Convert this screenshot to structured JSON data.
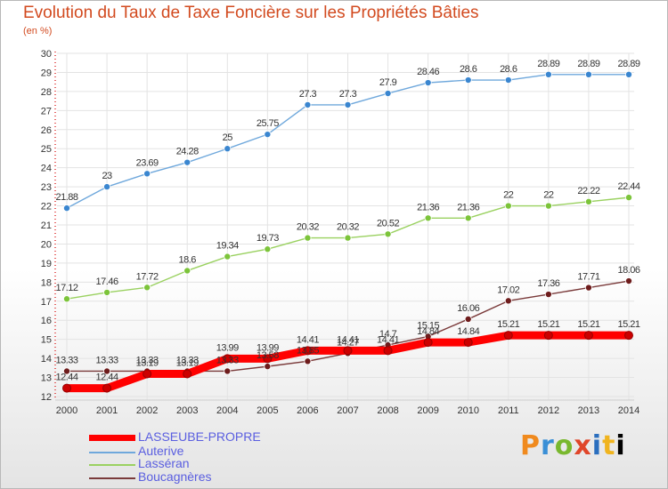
{
  "title": "Evolution du Taux de Taxe Foncière sur les Propriétés Bâties",
  "subtitle": "(en %)",
  "logo_text": "Proxiti",
  "chart_data": {
    "type": "line",
    "title": "Evolution du Taux de Taxe Foncière sur les Propriétés Bâties",
    "ylabel": "(en %)",
    "xlabel": "",
    "x": [
      "2000",
      "2001",
      "2002",
      "2003",
      "2004",
      "2005",
      "2006",
      "2007",
      "2008",
      "2009",
      "2010",
      "2011",
      "2012",
      "2013",
      "2014"
    ],
    "ylim": [
      12,
      30
    ],
    "yticks": [
      12,
      13,
      14,
      15,
      16,
      17,
      18,
      19,
      20,
      21,
      22,
      23,
      24,
      25,
      26,
      27,
      28,
      29,
      30
    ],
    "grid": true,
    "legend_position": "bottom-left",
    "series": [
      {
        "name": "Auterive",
        "color": "#6fa8dc",
        "marker": "#3a86d0",
        "values": [
          21.88,
          23,
          23.69,
          24.28,
          25,
          25.75,
          27.3,
          27.3,
          27.9,
          28.46,
          28.6,
          28.6,
          28.89,
          28.89,
          28.89
        ],
        "labels": [
          "21.88",
          "23",
          "23.69",
          "24.28",
          "25",
          "25.75",
          "27.3",
          "27.3",
          "27.9",
          "28.46",
          "28.6",
          "28.6",
          "28.89",
          "28.89",
          "28.89"
        ]
      },
      {
        "name": "Lasséran",
        "color": "#9ad160",
        "marker": "#7cc43a",
        "values": [
          17.12,
          17.46,
          17.72,
          18.6,
          19.34,
          19.73,
          20.32,
          20.32,
          20.52,
          21.36,
          21.36,
          22,
          22,
          22.22,
          22.44
        ],
        "labels": [
          "17.12",
          "17.46",
          "17.72",
          "18.6",
          "19.34",
          "19.73",
          "20.32",
          "20.32",
          "20.52",
          "21.36",
          "21.36",
          "22",
          "22",
          "22.22",
          "22.44"
        ]
      },
      {
        "name": "Boucagnères",
        "color": "#7a3a3a",
        "marker": "#6e1c1c",
        "values": [
          13.33,
          13.33,
          13.33,
          13.33,
          13.33,
          13.58,
          13.85,
          14.27,
          14.7,
          15.15,
          16.06,
          17.02,
          17.36,
          17.71,
          18.06
        ],
        "labels": [
          "13.33",
          "13.33",
          "13.33",
          "13.33",
          "13.33",
          "13.58",
          "13.85",
          "14.27",
          "14.7",
          "15.15",
          "16.06",
          "17.02",
          "17.36",
          "17.71",
          "18.06"
        ]
      },
      {
        "name": "LASSEUBE-PROPRE",
        "color": "#ff0000",
        "marker": "#cc0000",
        "values": [
          12.44,
          12.44,
          13.19,
          13.19,
          13.99,
          13.99,
          14.41,
          14.41,
          14.41,
          14.84,
          14.84,
          15.21,
          15.21,
          15.21,
          15.21
        ],
        "labels": [
          "12.44",
          "12.44",
          "13.19",
          "13.19",
          "13.99",
          "13.99",
          "14.41",
          "14.41",
          "14.41",
          "14.84",
          "14.84",
          "15.21",
          "15.21",
          "15.21",
          "15.21"
        ]
      }
    ],
    "legend": [
      {
        "name": "LASSEUBE-PROPRE",
        "color": "#ff0000",
        "text_color": "#5a5ee0"
      },
      {
        "name": "Auterive",
        "color": "#6fa8dc",
        "text_color": "#5a5ee0"
      },
      {
        "name": "Lasséran",
        "color": "#9ad160",
        "text_color": "#5a5ee0"
      },
      {
        "name": "Boucagnères",
        "color": "#7a3a3a",
        "text_color": "#5a5ee0"
      }
    ]
  }
}
